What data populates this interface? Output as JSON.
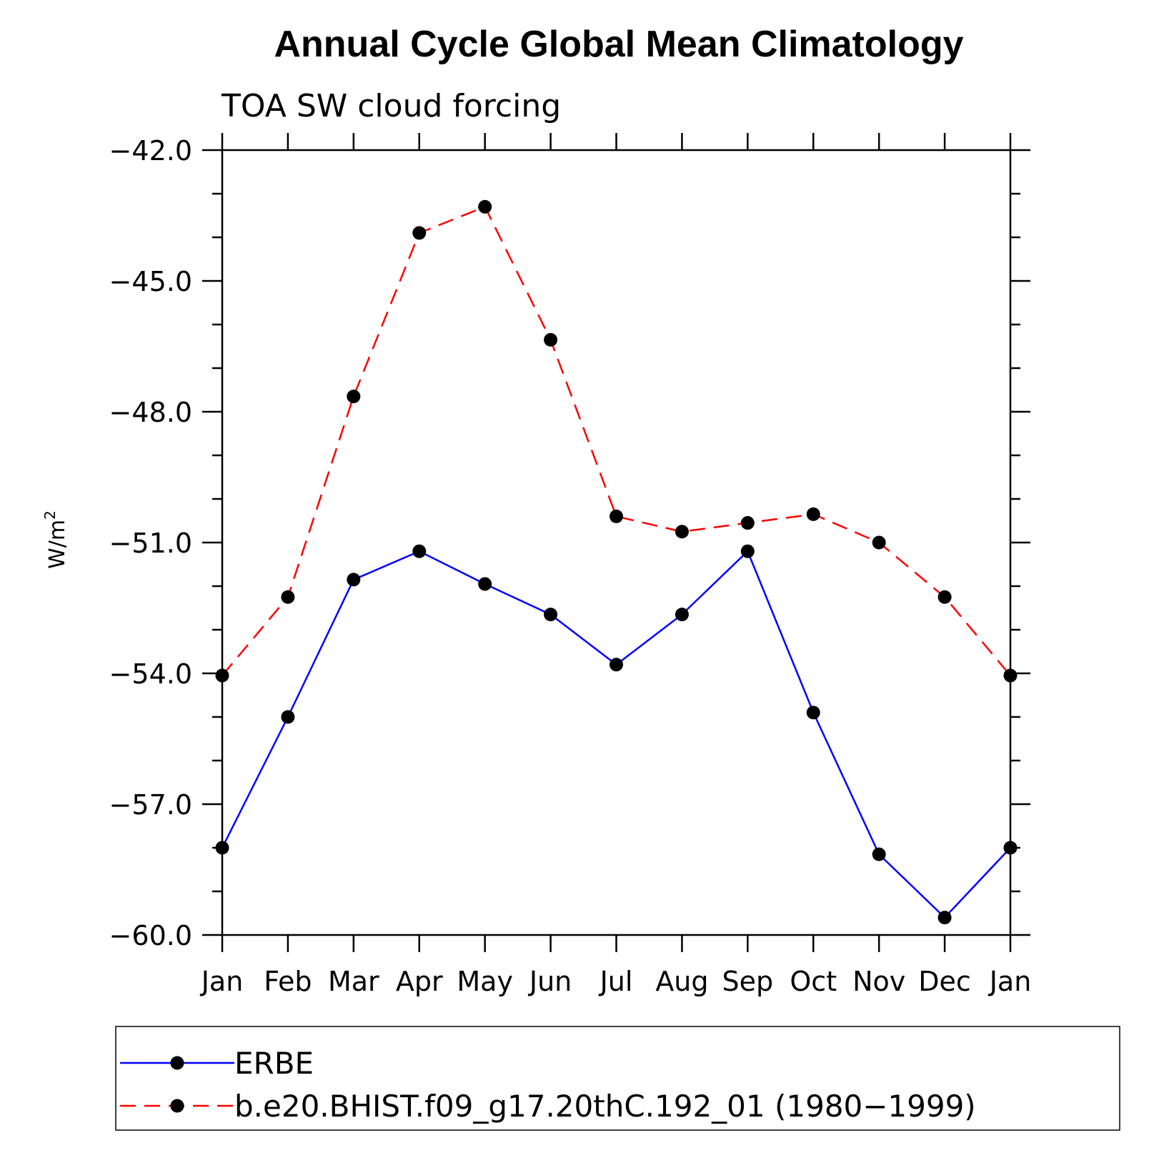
{
  "chart_data": {
    "type": "line",
    "title": "Annual Cycle Global Mean Climatology",
    "subtitle": "TOA SW cloud forcing",
    "xlabel": "",
    "ylabel": "W/m",
    "ylabel_superscript": "2",
    "categories": [
      "Jan",
      "Feb",
      "Mar",
      "Apr",
      "May",
      "Jun",
      "Jul",
      "Aug",
      "Sep",
      "Oct",
      "Nov",
      "Dec",
      "Jan"
    ],
    "ylim": [
      -60.0,
      -42.0
    ],
    "yticks": [
      -42.0,
      -45.0,
      -48.0,
      -51.0,
      -54.0,
      -57.0,
      -60.0
    ],
    "ytick_labels": [
      "−42.0",
      "−45.0",
      "−48.0",
      "−51.0",
      "−54.0",
      "−57.0",
      "−60.0"
    ],
    "grid": false,
    "legend_placement": "bottom",
    "series": [
      {
        "name": "ERBE",
        "color": "#0000ff",
        "line_style": "solid",
        "marker": "filled-circle",
        "values": [
          -58.0,
          -55.0,
          -51.85,
          -51.2,
          -51.95,
          -52.65,
          -53.8,
          -52.65,
          -51.2,
          -54.9,
          -58.15,
          -59.6,
          -58.0
        ]
      },
      {
        "name": "b.e20.BHIST.f09_g17.20thC.192_01 (1980−1999)",
        "color": "#ff0000",
        "line_style": "dashed",
        "marker": "filled-circle",
        "values": [
          -54.05,
          -52.25,
          -47.65,
          -43.9,
          -43.3,
          -46.35,
          -50.4,
          -50.75,
          -50.55,
          -50.35,
          -51.0,
          -52.25,
          -54.05
        ]
      }
    ]
  }
}
